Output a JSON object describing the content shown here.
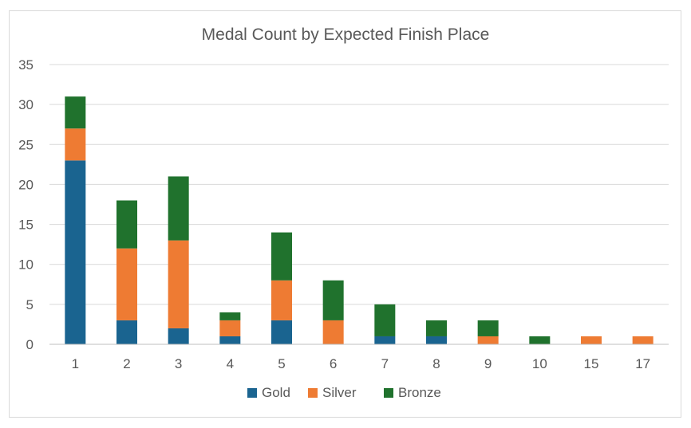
{
  "chart_data": {
    "type": "bar",
    "stacked": true,
    "title": "Medal Count by Expected Finish Place",
    "xlabel": "",
    "ylabel": "",
    "categories": [
      "1",
      "2",
      "3",
      "4",
      "5",
      "6",
      "7",
      "8",
      "9",
      "10",
      "15",
      "17"
    ],
    "series": [
      {
        "name": "Gold",
        "color": "#1a6490",
        "values": [
          23,
          3,
          2,
          1,
          3,
          0,
          1,
          1,
          0,
          0,
          0,
          0
        ]
      },
      {
        "name": "Silver",
        "color": "#ee7b33",
        "values": [
          4,
          9,
          11,
          2,
          5,
          3,
          0,
          0,
          1,
          0,
          1,
          1
        ]
      },
      {
        "name": "Bronze",
        "color": "#20722d",
        "values": [
          4,
          6,
          8,
          1,
          6,
          5,
          4,
          2,
          2,
          1,
          0,
          0
        ]
      }
    ],
    "ylim": [
      0,
      35
    ],
    "yticks": [
      0,
      5,
      10,
      15,
      20,
      25,
      30,
      35
    ],
    "grid": true,
    "legend_position": "bottom"
  }
}
